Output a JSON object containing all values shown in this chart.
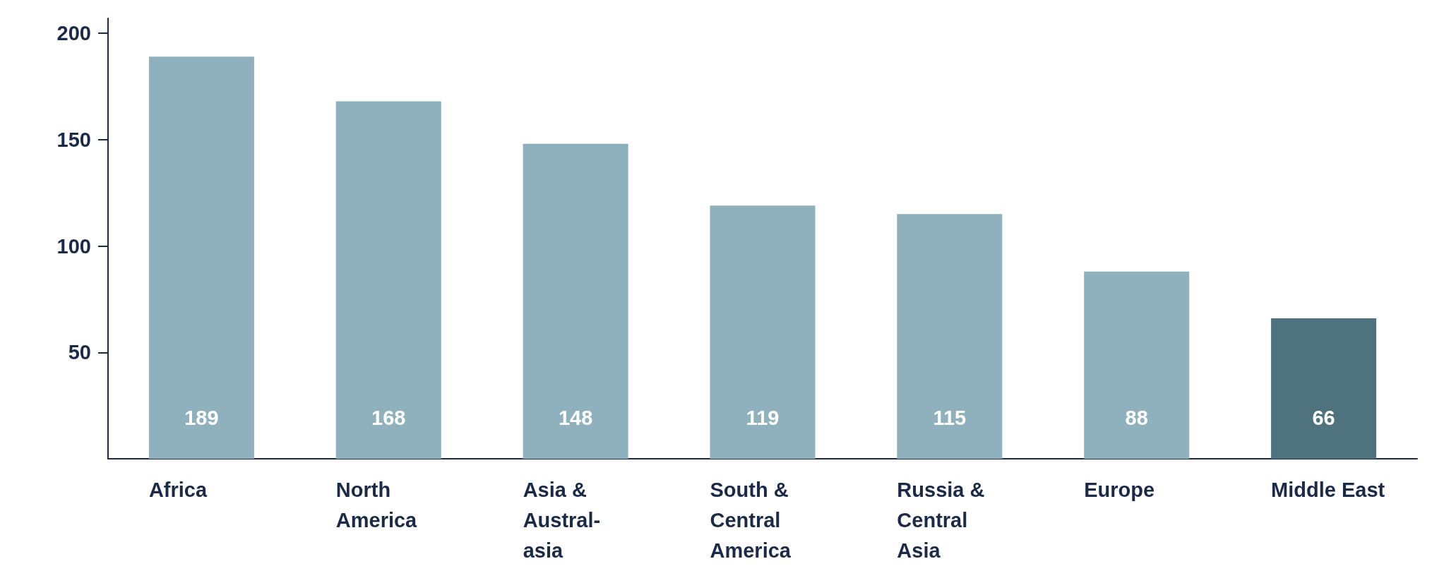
{
  "chart_data": {
    "type": "bar",
    "categories": [
      "Africa",
      "North\nAmerica",
      "Asia &\nAustral-\nasia",
      "South &\nCentral\nAmerica",
      "Russia &\nCentral\nAsia",
      "Europe",
      "Middle East"
    ],
    "values": [
      189,
      168,
      148,
      119,
      115,
      88,
      66
    ],
    "colors": [
      "#8fb1bd",
      "#8fb1bd",
      "#8fb1bd",
      "#8fb1bd",
      "#8fb1bd",
      "#8fb1bd",
      "#4f737e"
    ],
    "ylim": [
      0,
      207
    ],
    "yticks": [
      50,
      100,
      150,
      200
    ],
    "data_labels": true,
    "grid": false
  }
}
